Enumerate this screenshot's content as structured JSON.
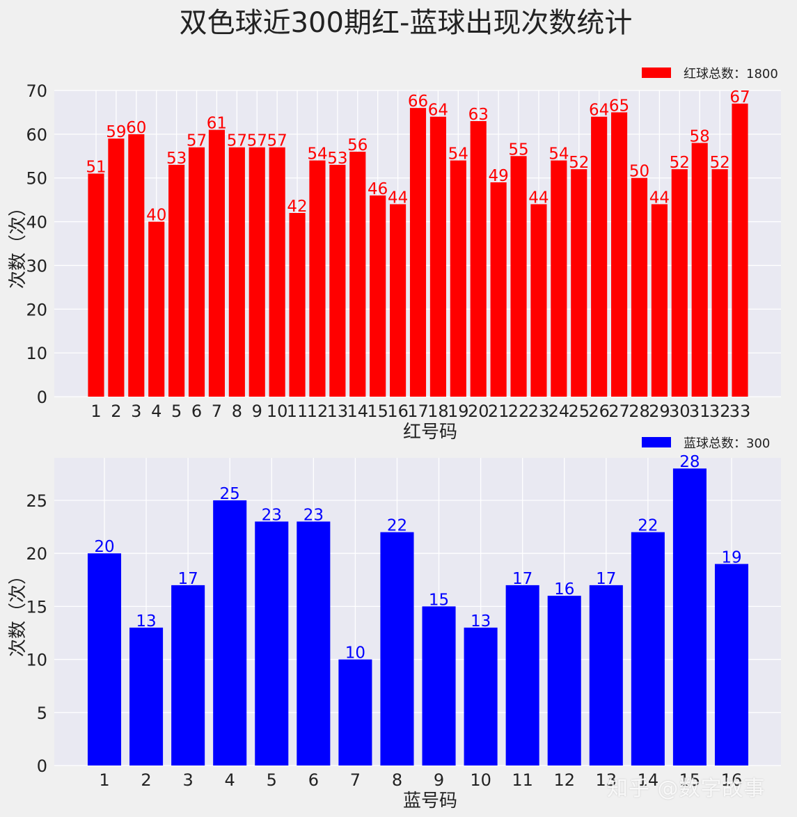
{
  "title": "双色球近300期红-蓝球出现次数统计",
  "chart_data": [
    {
      "type": "bar",
      "xlabel": "红号码",
      "ylabel": "次数（次）",
      "ylim": [
        0,
        70
      ],
      "yticks": [
        0,
        10,
        20,
        30,
        40,
        50,
        60,
        70
      ],
      "grid": true,
      "legend_position": "top-right",
      "color": "#ff0000",
      "categories": [
        "1",
        "2",
        "3",
        "4",
        "5",
        "6",
        "7",
        "8",
        "9",
        "10",
        "11",
        "12",
        "13",
        "14",
        "15",
        "16",
        "17",
        "18",
        "19",
        "20",
        "21",
        "22",
        "23",
        "24",
        "25",
        "26",
        "27",
        "28",
        "29",
        "30",
        "31",
        "32",
        "33"
      ],
      "series": [
        {
          "name": "红球总数：1800",
          "values": [
            51,
            59,
            60,
            40,
            53,
            57,
            61,
            57,
            57,
            57,
            42,
            54,
            53,
            56,
            46,
            44,
            66,
            64,
            54,
            63,
            49,
            55,
            44,
            54,
            52,
            64,
            65,
            50,
            44,
            52,
            58,
            52,
            67
          ]
        }
      ]
    },
    {
      "type": "bar",
      "xlabel": "蓝号码",
      "ylabel": "次数（次）",
      "ylim": [
        0,
        29
      ],
      "yticks": [
        0,
        5,
        10,
        15,
        20,
        25
      ],
      "grid": true,
      "legend_position": "top-right",
      "color": "#0000ff",
      "categories": [
        "1",
        "2",
        "3",
        "4",
        "5",
        "6",
        "7",
        "8",
        "9",
        "10",
        "11",
        "12",
        "13",
        "14",
        "15",
        "16"
      ],
      "series": [
        {
          "name": "蓝球总数：300",
          "values": [
            20,
            13,
            17,
            25,
            23,
            23,
            10,
            22,
            15,
            13,
            17,
            16,
            17,
            22,
            28,
            19
          ]
        }
      ]
    }
  ],
  "watermark": "知乎 @数字故事"
}
